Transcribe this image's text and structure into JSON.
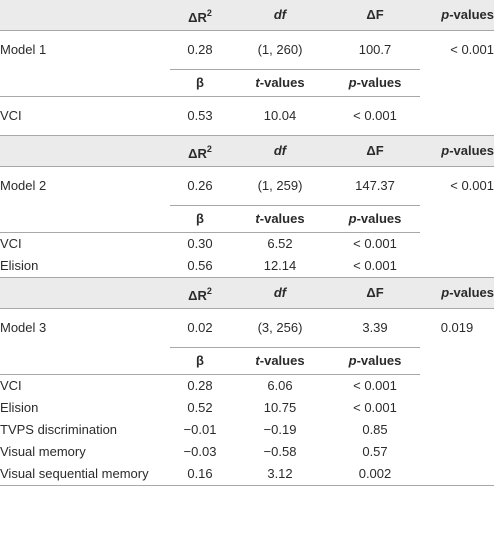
{
  "blocks": [
    {
      "header": {
        "delta_r2": "ΔR",
        "r2_sup": "2",
        "df": "df",
        "delta_f": "ΔF",
        "p_values_p": "p",
        "p_values_rest": "-values"
      },
      "model": {
        "label": "Model 1",
        "delta_r2": "0.28",
        "df": "(1, 260)",
        "delta_f": "100.7",
        "p": "< 0.001"
      },
      "coef_header": {
        "beta": "β",
        "t_t": "t",
        "t_rest": "-values",
        "p_p": "p",
        "p_rest": "-values"
      },
      "rows": [
        {
          "label": "VCI",
          "beta": "0.53",
          "t": "10.04",
          "p": "< 0.001"
        }
      ]
    },
    {
      "header": {
        "delta_r2": "ΔR",
        "r2_sup": "2",
        "df": "df",
        "delta_f": "ΔF",
        "p_values_p": "p",
        "p_values_rest": "-values"
      },
      "model": {
        "label": "Model 2",
        "delta_r2": "0.26",
        "df": "(1, 259)",
        "delta_f": "147.37",
        "p": "< 0.001"
      },
      "coef_header": {
        "beta": "β",
        "t_t": "t",
        "t_rest": "-values",
        "p_p": "p",
        "p_rest": "-values"
      },
      "rows": [
        {
          "label": "VCI",
          "beta": "0.30",
          "t": "6.52",
          "p": "< 0.001"
        },
        {
          "label": "Elision",
          "beta": "0.56",
          "t": "12.14",
          "p": "< 0.001"
        }
      ]
    },
    {
      "header": {
        "delta_r2": "ΔR",
        "r2_sup": "2",
        "df": "df",
        "delta_f": "ΔF",
        "p_values_p": "p",
        "p_values_rest": "-values"
      },
      "model": {
        "label": "Model 3",
        "delta_r2": "0.02",
        "df": "(3, 256)",
        "delta_f": "3.39",
        "p": "0.019"
      },
      "coef_header": {
        "beta": "β",
        "t_t": "t",
        "t_rest": "-values",
        "p_p": "p",
        "p_rest": "-values"
      },
      "rows": [
        {
          "label": "VCI",
          "beta": "0.28",
          "t": "6.06",
          "p": "< 0.001"
        },
        {
          "label": "Elision",
          "beta": "0.52",
          "t": "10.75",
          "p": "< 0.001"
        },
        {
          "label": "TVPS discrimination",
          "beta": "−0.01",
          "t": "−0.19",
          "p": "0.85"
        },
        {
          "label": "Visual memory",
          "beta": "−0.03",
          "t": "−0.58",
          "p": "0.57"
        },
        {
          "label": "Visual sequential memory",
          "beta": "0.16",
          "t": "3.12",
          "p": "0.002"
        }
      ]
    }
  ]
}
